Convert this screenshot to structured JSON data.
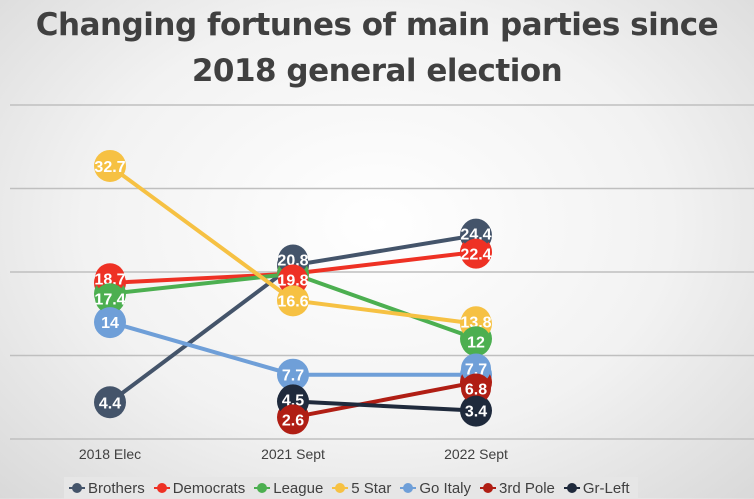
{
  "chart_data": {
    "type": "line",
    "title": "Changing fortunes of main parties since 2018 general election",
    "categories": [
      "2018 Elec",
      "2021 Sept",
      "2022 Sept"
    ],
    "ylim": [
      0,
      40
    ],
    "grid": true,
    "legend_position": "bottom",
    "series": [
      {
        "name": "Brothers",
        "color": "#44546a",
        "values": [
          4.4,
          20.8,
          24.4
        ],
        "labels": [
          "4.4",
          "20.8",
          "24.4"
        ]
      },
      {
        "name": "Democrats",
        "color": "#ee3124",
        "values": [
          18.7,
          19.8,
          22.4
        ],
        "labels": [
          "18.7",
          "19.8",
          "22.4"
        ]
      },
      {
        "name": "League",
        "color": "#4caf50",
        "values": [
          17.4,
          19.8,
          12
        ],
        "labels": [
          "17.4",
          "",
          "12"
        ]
      },
      {
        "name": "5 Star",
        "color": "#f6c143",
        "values": [
          32.7,
          16.6,
          13.8
        ],
        "labels": [
          "32.7",
          "16.6",
          "13.8"
        ]
      },
      {
        "name": "Go Italy",
        "color": "#6f9fd8",
        "values": [
          14,
          7.7,
          7.7
        ],
        "labels": [
          "14",
          "7.7",
          "7.7"
        ]
      },
      {
        "name": "3rd Pole",
        "color": "#b01e14",
        "values": [
          null,
          2.6,
          6.8
        ],
        "labels": [
          "",
          "2.6",
          "6.8"
        ]
      },
      {
        "name": "Gr-Left",
        "color": "#1f2a3c",
        "values": [
          null,
          4.5,
          3.4
        ],
        "labels": [
          "",
          "4.5",
          "3.4"
        ]
      }
    ]
  }
}
